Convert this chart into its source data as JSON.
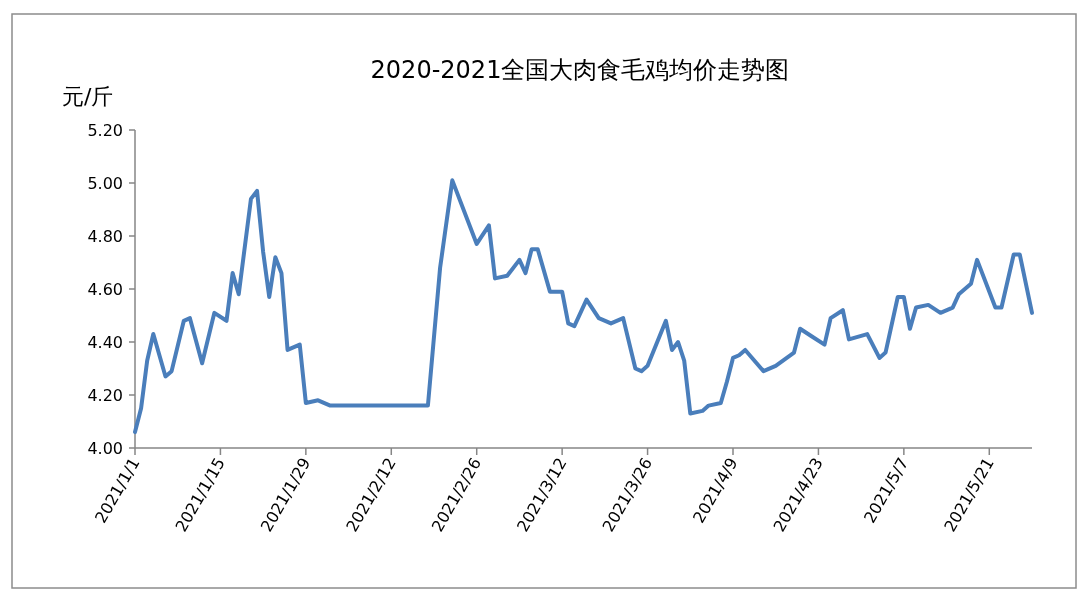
{
  "chart_data": {
    "type": "line",
    "title": "2020-2021全国大肉食毛鸡均价走势图",
    "ylabel": "元/斤",
    "color": "#4a7ebb",
    "x": [
      "2021-01-01",
      "2021-01-02",
      "2021-01-03",
      "2021-01-04",
      "2021-01-06",
      "2021-01-07",
      "2021-01-09",
      "2021-01-10",
      "2021-01-12",
      "2021-01-14",
      "2021-01-16",
      "2021-01-17",
      "2021-01-18",
      "2021-01-20",
      "2021-01-21",
      "2021-01-22",
      "2021-01-23",
      "2021-01-24",
      "2021-01-25",
      "2021-01-26",
      "2021-01-28",
      "2021-01-29",
      "2021-01-31",
      "2021-02-02",
      "2021-02-18",
      "2021-02-20",
      "2021-02-22",
      "2021-02-26",
      "2021-02-28",
      "2021-03-01",
      "2021-03-03",
      "2021-03-05",
      "2021-03-06",
      "2021-03-07",
      "2021-03-08",
      "2021-03-10",
      "2021-03-12",
      "2021-03-13",
      "2021-03-14",
      "2021-03-16",
      "2021-03-18",
      "2021-03-20",
      "2021-03-22",
      "2021-03-24",
      "2021-03-25",
      "2021-03-26",
      "2021-03-29",
      "2021-03-30",
      "2021-03-31",
      "2021-04-01",
      "2021-04-02",
      "2021-04-04",
      "2021-04-05",
      "2021-04-07",
      "2021-04-08",
      "2021-04-09",
      "2021-04-10",
      "2021-04-11",
      "2021-04-14",
      "2021-04-16",
      "2021-04-19",
      "2021-04-20",
      "2021-04-22",
      "2021-04-24",
      "2021-04-25",
      "2021-04-27",
      "2021-04-28",
      "2021-05-01",
      "2021-05-03",
      "2021-05-04",
      "2021-05-06",
      "2021-05-07",
      "2021-05-08",
      "2021-05-09",
      "2021-05-11",
      "2021-05-13",
      "2021-05-15",
      "2021-05-16",
      "2021-05-18",
      "2021-05-19",
      "2021-05-22",
      "2021-05-23",
      "2021-05-25",
      "2021-05-26",
      "2021-05-28"
    ],
    "values": [
      4.06,
      4.15,
      4.33,
      4.43,
      4.27,
      4.29,
      4.48,
      4.49,
      4.32,
      4.51,
      4.48,
      4.66,
      4.58,
      4.94,
      4.97,
      4.74,
      4.57,
      4.72,
      4.66,
      4.37,
      4.39,
      4.17,
      4.18,
      4.16,
      4.16,
      4.68,
      5.01,
      4.77,
      4.84,
      4.64,
      4.65,
      4.71,
      4.66,
      4.75,
      4.75,
      4.59,
      4.59,
      4.47,
      4.46,
      4.56,
      4.49,
      4.47,
      4.49,
      4.3,
      4.29,
      4.31,
      4.48,
      4.37,
      4.4,
      4.33,
      4.13,
      4.14,
      4.16,
      4.17,
      4.25,
      4.34,
      4.35,
      4.37,
      4.29,
      4.31,
      4.36,
      4.45,
      4.42,
      4.39,
      4.49,
      4.52,
      4.41,
      4.43,
      4.34,
      4.36,
      4.57,
      4.57,
      4.45,
      4.53,
      4.54,
      4.51,
      4.53,
      4.58,
      4.62,
      4.71,
      4.53,
      4.53,
      4.73,
      4.73,
      4.51
    ],
    "xlim": [
      "2021-01-01",
      "2021-05-28"
    ],
    "ylim": [
      4.0,
      5.2
    ],
    "xticks": [
      {
        "value": "2021-01-01",
        "label": "2021/1/1"
      },
      {
        "value": "2021-01-15",
        "label": "2021/1/15"
      },
      {
        "value": "2021-01-29",
        "label": "2021/1/29"
      },
      {
        "value": "2021-02-12",
        "label": "2021/2/12"
      },
      {
        "value": "2021-02-26",
        "label": "2021/2/26"
      },
      {
        "value": "2021-03-12",
        "label": "2021/3/12"
      },
      {
        "value": "2021-03-26",
        "label": "2021/3/26"
      },
      {
        "value": "2021-04-09",
        "label": "2021/4/9"
      },
      {
        "value": "2021-04-23",
        "label": "2021/4/23"
      },
      {
        "value": "2021-05-07",
        "label": "2021/5/7"
      },
      {
        "value": "2021-05-21",
        "label": "2021/5/21"
      }
    ],
    "yticks": [
      {
        "value": 4.0,
        "label": "4.00"
      },
      {
        "value": 4.2,
        "label": "4.20"
      },
      {
        "value": 4.4,
        "label": "4.40"
      },
      {
        "value": 4.6,
        "label": "4.60"
      },
      {
        "value": 4.8,
        "label": "4.80"
      },
      {
        "value": 5.0,
        "label": "5.00"
      },
      {
        "value": 5.2,
        "label": "5.20"
      }
    ]
  }
}
